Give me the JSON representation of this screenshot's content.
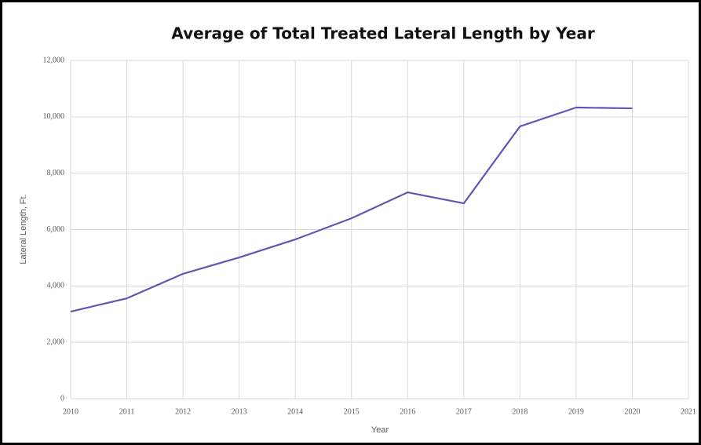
{
  "chart_data": {
    "type": "line",
    "title": "Average of Total Treated Lateral Length by Year",
    "x_label": "Year",
    "y_label": "Lateral Length, Ft.",
    "x": [
      2010,
      2011,
      2012,
      2013,
      2014,
      2015,
      2016,
      2017,
      2018,
      2019,
      2020
    ],
    "series": [
      {
        "name": "Average of Total Treated Lateral Length",
        "color": "#6a52b3",
        "values": [
          3090,
          3560,
          4430,
          5010,
          5650,
          6400,
          7320,
          6930,
          9660,
          10330,
          10300
        ]
      }
    ],
    "xlim": [
      2010,
      2021
    ],
    "xticks": [
      2010,
      2011,
      2012,
      2013,
      2014,
      2015,
      2016,
      2017,
      2018,
      2019,
      2020,
      2021
    ],
    "ylim": [
      0,
      12000
    ],
    "yticks": [
      {
        "value": 0,
        "label": "0"
      },
      {
        "value": 2000,
        "label": "2,000"
      },
      {
        "value": 4000,
        "label": "4,000"
      },
      {
        "value": 6000,
        "label": "6,000"
      },
      {
        "value": 8000,
        "label": "8,000"
      },
      {
        "value": 10000,
        "label": "10,000"
      },
      {
        "value": 12000,
        "label": "12,000"
      }
    ],
    "grid": true
  }
}
